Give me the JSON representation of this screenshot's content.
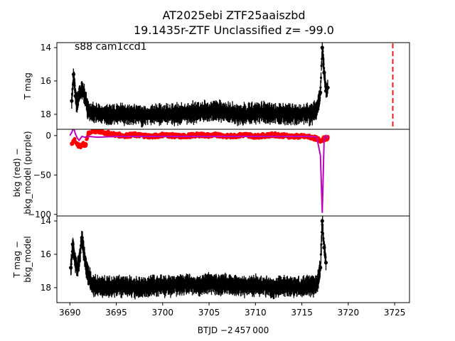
{
  "chart_data": {
    "type": "scatter",
    "title_line1": "AT2025ebi  ZTF25aaiszbd",
    "title_line2": "19.1435r-ZTF Unclassified z= -99.0",
    "annotation": "s88 cam1ccd1",
    "xlabel": "BTJD −2 457 000",
    "xlim": [
      3688.6,
      3726.6
    ],
    "xticks": [
      3690,
      3695,
      3700,
      3705,
      3710,
      3715,
      3720,
      3725
    ],
    "marker_x": 3724.8,
    "colors": {
      "points": "#000000",
      "bkg": "#ff0000",
      "model": "#bf00bf",
      "marker": "#ff0000"
    },
    "panels": [
      {
        "ylabel": "T mag",
        "ylim": [
          18.9,
          13.7
        ],
        "yticks": [
          14,
          16,
          18
        ],
        "yticklabels": [
          "14",
          "16",
          "18"
        ],
        "series": [
          {
            "kind": "points",
            "x": [
              3690.2,
              3690.4,
              3690.6,
              3690.8,
              3691.0,
              3691.3,
              3691.6,
              3692.0,
              3692.5,
              3693.0,
              3694.0,
              3695.0,
              3696.0,
              3697.0,
              3698.0,
              3699.0,
              3700.0,
              3701.0,
              3702.0,
              3703.0,
              3704.0,
              3705.0,
              3706.0,
              3707.0,
              3708.0,
              3709.0,
              3710.0,
              3711.0,
              3712.0,
              3713.0,
              3714.0,
              3715.0,
              3716.0,
              3716.6,
              3717.0,
              3717.2,
              3717.4,
              3717.6,
              3717.8
            ],
            "y": [
              17.2,
              15.6,
              16.9,
              17.4,
              16.8,
              16.5,
              16.9,
              17.8,
              17.9,
              18.0,
              18.0,
              18.0,
              18.0,
              18.0,
              18.1,
              18.0,
              18.0,
              18.0,
              18.0,
              17.9,
              17.9,
              17.8,
              17.8,
              17.9,
              18.0,
              18.0,
              17.9,
              17.9,
              18.0,
              18.0,
              18.0,
              18.0,
              18.0,
              17.8,
              16.7,
              14.0,
              15.5,
              16.6,
              16.4
            ]
          }
        ]
      },
      {
        "ylabel": "bkg (red) −\nbkg_model (purple)",
        "ylim": [
          -102,
          8
        ],
        "yticks": [
          0,
          -50,
          -100
        ],
        "yticklabels": [
          "0",
          "−50",
          "−100"
        ],
        "series": [
          {
            "kind": "bkg",
            "x": [
              3690.2,
              3690.5,
              3690.8,
              3691.1,
              3691.4,
              3691.7,
              3692.0,
              3692.5,
              3693.0,
              3694.0,
              3695.0,
              3696.0,
              3697.0,
              3698.0,
              3699.0,
              3700.0,
              3701.0,
              3702.0,
              3703.0,
              3704.0,
              3705.0,
              3706.0,
              3707.0,
              3708.0,
              3709.0,
              3710.0,
              3711.0,
              3712.0,
              3713.0,
              3714.0,
              3715.0,
              3716.0,
              3716.6,
              3717.0,
              3717.4,
              3717.8
            ],
            "y": [
              -10,
              -5,
              -12,
              -14,
              -10,
              -13,
              4,
              5,
              6,
              3,
              1,
              0,
              1,
              0,
              -1,
              1,
              0,
              -1,
              0,
              1,
              0,
              1,
              -1,
              0,
              1,
              -1,
              0,
              1,
              0,
              -1,
              -1,
              -2,
              -4,
              -6,
              -4,
              -3
            ]
          },
          {
            "kind": "model",
            "x": [
              3690.0,
              3690.2,
              3690.4,
              3690.6,
              3690.8,
              3691.0,
              3691.3,
              3691.6,
              3692.0,
              3693.0,
              3695.0,
              3700.0,
              3705.0,
              3710.0,
              3715.0,
              3716.0,
              3716.6,
              3717.0,
              3717.2,
              3717.4,
              3717.6,
              3717.8
            ],
            "y": [
              0,
              4,
              10,
              2,
              -3,
              -6,
              -1,
              -2,
              -1,
              -2,
              -1,
              -1,
              -1,
              -1,
              -1,
              -1,
              -2,
              -25,
              -98,
              -5,
              0,
              -4
            ]
          }
        ]
      },
      {
        "ylabel": "T mag −\nbkg_model",
        "ylim": [
          18.9,
          13.7
        ],
        "yticks": [
          14,
          16,
          18
        ],
        "yticklabels": [
          "14",
          "16",
          "18"
        ],
        "series": [
          {
            "kind": "points",
            "x": [
              3690.1,
              3690.3,
              3690.5,
              3690.8,
              3691.0,
              3691.3,
              3691.6,
              3691.9,
              3692.5,
              3693.0,
              3694.0,
              3695.0,
              3696.0,
              3697.0,
              3698.0,
              3699.0,
              3700.0,
              3701.0,
              3702.0,
              3703.0,
              3704.0,
              3705.0,
              3706.0,
              3707.0,
              3708.0,
              3709.0,
              3710.0,
              3711.0,
              3712.0,
              3713.0,
              3714.0,
              3715.0,
              3716.0,
              3716.6,
              3717.0,
              3717.2,
              3717.4,
              3717.6
            ],
            "y": [
              16.8,
              15.4,
              16.2,
              16.9,
              16.4,
              15.0,
              16.3,
              17.1,
              17.9,
              17.9,
              18.0,
              17.9,
              17.9,
              18.0,
              18.0,
              17.9,
              17.9,
              17.9,
              17.8,
              17.8,
              17.9,
              17.7,
              17.8,
              17.8,
              17.9,
              17.9,
              17.9,
              17.9,
              18.0,
              17.9,
              17.9,
              18.0,
              17.9,
              17.9,
              16.8,
              14.0,
              15.6,
              16.5
            ]
          }
        ]
      }
    ]
  }
}
